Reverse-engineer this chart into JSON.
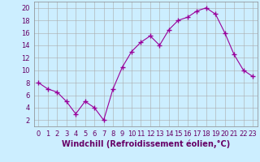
{
  "x": [
    0,
    1,
    2,
    3,
    4,
    5,
    6,
    7,
    8,
    9,
    10,
    11,
    12,
    13,
    14,
    15,
    16,
    17,
    18,
    19,
    20,
    21,
    22,
    23
  ],
  "y": [
    8,
    7,
    6.5,
    5,
    3,
    5,
    4,
    2,
    7,
    10.5,
    13,
    14.5,
    15.5,
    14,
    16.5,
    18,
    18.5,
    19.5,
    20,
    19,
    16,
    12.5,
    10,
    9
  ],
  "line_color": "#990099",
  "marker": "+",
  "marker_size": 4,
  "bg_color": "#cceeff",
  "grid_color": "#aaaaaa",
  "xlabel": "Windchill (Refroidissement éolien,°C)",
  "xlabel_fontsize": 7,
  "xlim": [
    -0.5,
    23.5
  ],
  "ylim": [
    1,
    21
  ],
  "yticks": [
    2,
    4,
    6,
    8,
    10,
    12,
    14,
    16,
    18,
    20
  ],
  "xtick_labels": [
    "0",
    "1",
    "2",
    "3",
    "4",
    "5",
    "6",
    "7",
    "8",
    "9",
    "10",
    "11",
    "12",
    "13",
    "14",
    "15",
    "16",
    "17",
    "18",
    "19",
    "20",
    "21",
    "22",
    "23"
  ],
  "tick_fontsize": 6,
  "line_width": 0.8,
  "marker_color": "#990099"
}
